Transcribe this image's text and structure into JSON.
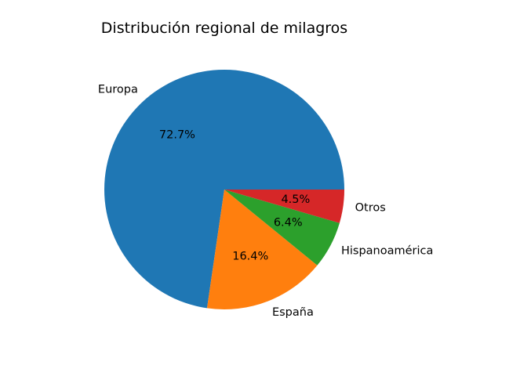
{
  "chart_data": {
    "type": "pie",
    "title": "Distribución regional de milagros",
    "slices": [
      {
        "label": "Europa",
        "value": 72.7,
        "pct_label": "72.7%",
        "color": "#1f77b4"
      },
      {
        "label": "España",
        "value": 16.4,
        "pct_label": "16.4%",
        "color": "#ff7f0e"
      },
      {
        "label": "Hispanoamérica",
        "value": 6.4,
        "pct_label": "6.4%",
        "color": "#2ca02c"
      },
      {
        "label": "Otros",
        "value": 4.5,
        "pct_label": "4.5%",
        "color": "#d62728"
      }
    ],
    "start_angle_deg": 0,
    "direction": "counterclockwise",
    "legend": "none"
  }
}
